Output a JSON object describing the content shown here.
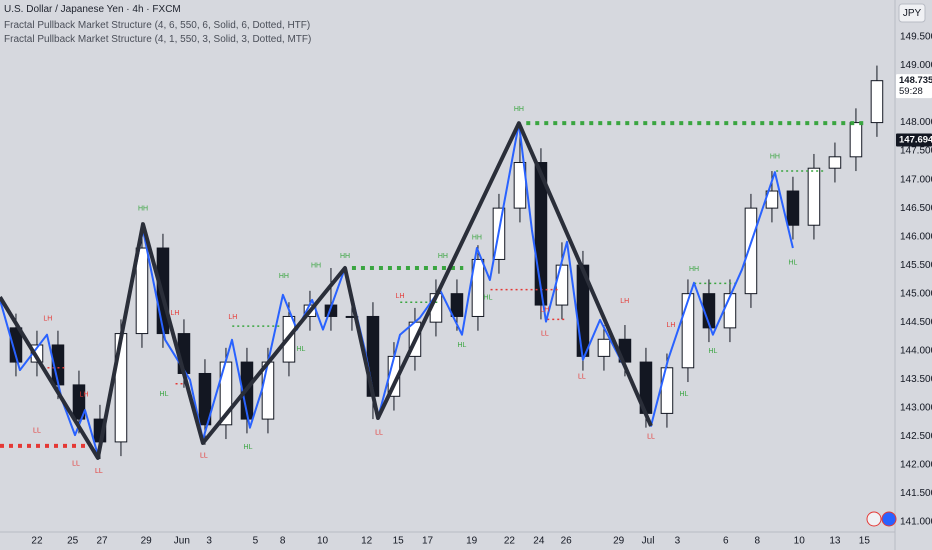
{
  "chart_data": {
    "type": "candlestick",
    "title": "U.S. Dollar / Japanese Yen · 4h · FXCM",
    "indicators": [
      "Fractal Pullback Market Structure (4, 6, 550, 6, Solid, 6, Dotted, HTF)",
      "Fractal Pullback Market Structure (4, 1, 550, 3, Solid, 3, Dotted, MTF)"
    ],
    "currency": "JPY",
    "grid": false,
    "xlim": [
      -1.76,
      40.86
    ],
    "ylim": [
      140.82,
      150.15
    ],
    "xticks": [
      {
        "value": 0,
        "label": "22"
      },
      {
        "value": 1.7,
        "label": "25"
      },
      {
        "value": 3.1,
        "label": "27"
      },
      {
        "value": 5.2,
        "label": "29"
      },
      {
        "value": 6.9,
        "label": "Jun"
      },
      {
        "value": 8.2,
        "label": "3"
      },
      {
        "value": 10.4,
        "label": "5"
      },
      {
        "value": 11.7,
        "label": "8"
      },
      {
        "value": 13.6,
        "label": "10"
      },
      {
        "value": 15.7,
        "label": "12"
      },
      {
        "value": 17.2,
        "label": "15"
      },
      {
        "value": 18.6,
        "label": "17"
      },
      {
        "value": 20.7,
        "label": "19"
      },
      {
        "value": 22.5,
        "label": "22"
      },
      {
        "value": 23.9,
        "label": "24"
      },
      {
        "value": 25.2,
        "label": "26"
      },
      {
        "value": 27.7,
        "label": "29"
      },
      {
        "value": 29.1,
        "label": "Jul"
      },
      {
        "value": 30.5,
        "label": "3"
      },
      {
        "value": 32.8,
        "label": "6"
      },
      {
        "value": 34.3,
        "label": "8"
      },
      {
        "value": 36.3,
        "label": "10"
      },
      {
        "value": 38.0,
        "label": "13"
      },
      {
        "value": 39.4,
        "label": "15"
      }
    ],
    "yticks": [
      {
        "value": 149.5,
        "label": "149.500"
      },
      {
        "value": 149,
        "label": "149.000"
      },
      {
        "value": 148,
        "label": "148.000"
      },
      {
        "value": 147.5,
        "label": "147.500"
      },
      {
        "value": 147,
        "label": "147.000"
      },
      {
        "value": 146.5,
        "label": "146.500"
      },
      {
        "value": 146,
        "label": "146.000"
      },
      {
        "value": 145.5,
        "label": "145.500"
      },
      {
        "value": 145,
        "label": "145.000"
      },
      {
        "value": 144.5,
        "label": "144.500"
      },
      {
        "value": 144,
        "label": "144.000"
      },
      {
        "value": 143.5,
        "label": "143.500"
      },
      {
        "value": 143,
        "label": "143.000"
      },
      {
        "value": 142.5,
        "label": "142.500"
      },
      {
        "value": 142,
        "label": "142.000"
      },
      {
        "value": 141.5,
        "label": "141.500"
      },
      {
        "value": 141,
        "label": "141.000"
      }
    ],
    "candles": {
      "up_color": "#ffffff",
      "down_color": "#131722",
      "x": [
        -1,
        0,
        1,
        2,
        3,
        4,
        5,
        6,
        7,
        8,
        9,
        10,
        11,
        12,
        13,
        14,
        15,
        16,
        17,
        18,
        19,
        20,
        21,
        22,
        23,
        24,
        25,
        26,
        27,
        28,
        29,
        30,
        31,
        32,
        33,
        34,
        35,
        36,
        37,
        38,
        39,
        40
      ],
      "open": [
        144.4,
        143.8,
        144.1,
        143.4,
        142.8,
        142.4,
        144.3,
        145.8,
        144.3,
        143.6,
        142.7,
        143.8,
        142.8,
        143.8,
        144.6,
        144.8,
        144.6,
        144.6,
        143.2,
        143.9,
        144.5,
        145.0,
        144.6,
        145.6,
        146.5,
        147.3,
        144.8,
        145.5,
        143.9,
        144.2,
        143.8,
        142.9,
        143.7,
        145.0,
        144.4,
        145.0,
        146.5,
        146.8,
        146.2,
        147.2,
        147.4,
        148.0
      ],
      "high": [
        144.65,
        144.35,
        144.35,
        143.65,
        143.05,
        144.55,
        146.25,
        146.05,
        144.55,
        143.85,
        144.05,
        144.05,
        144.05,
        144.85,
        145.05,
        145.45,
        144.85,
        144.85,
        144.15,
        144.75,
        145.25,
        145.25,
        145.85,
        146.75,
        148.0,
        147.55,
        145.9,
        145.75,
        144.45,
        144.45,
        144.05,
        143.95,
        145.25,
        145.25,
        145.25,
        146.75,
        147.15,
        147.05,
        147.45,
        147.65,
        148.25,
        149.0
      ],
      "low": [
        143.55,
        143.55,
        143.15,
        142.55,
        142.1,
        142.15,
        144.05,
        144.05,
        143.35,
        142.35,
        142.45,
        142.55,
        142.55,
        143.55,
        144.35,
        144.35,
        144.35,
        142.8,
        142.95,
        143.65,
        144.25,
        144.35,
        144.35,
        145.35,
        146.25,
        144.55,
        144.55,
        143.65,
        143.65,
        143.55,
        142.65,
        142.65,
        143.45,
        144.15,
        144.15,
        144.75,
        146.25,
        145.95,
        145.95,
        146.95,
        147.15,
        147.75
      ],
      "close": [
        143.8,
        144.1,
        143.4,
        142.8,
        142.4,
        144.3,
        145.8,
        144.3,
        143.6,
        142.7,
        143.8,
        142.8,
        143.8,
        144.6,
        144.8,
        144.6,
        144.6,
        143.2,
        143.9,
        144.5,
        145.0,
        144.6,
        145.6,
        146.5,
        147.3,
        144.8,
        145.5,
        143.9,
        144.2,
        143.8,
        142.9,
        143.7,
        145.0,
        144.4,
        145.0,
        146.5,
        146.8,
        146.2,
        147.2,
        147.4,
        148.0,
        148.735
      ]
    },
    "series": [
      {
        "color": "#2962ff",
        "width": 2,
        "x": [
          -1.76,
          -0.81,
          0.48,
          1.19,
          1.81,
          2.29,
          2.9,
          5.05,
          6.1,
          7.29,
          7.9,
          9.29,
          10.14,
          10.71,
          11.71,
          12.38,
          13.1,
          13.62,
          14.67,
          15.62,
          16.24,
          17.29,
          18.24,
          19.19,
          20.24,
          20.95,
          21.57,
          22.95,
          23.57,
          24.24,
          25.24,
          26.0,
          26.81,
          28.05,
          29.24,
          30.05,
          31.29,
          32.19,
          33.57,
          35.14,
          36.0
        ],
        "values": [
          144.89,
          143.66,
          144.28,
          143.14,
          142.52,
          142.96,
          142.17,
          146.12,
          144.19,
          143.49,
          142.44,
          144.19,
          142.65,
          143.31,
          144.98,
          144.37,
          144.89,
          144.37,
          145.45,
          144.01,
          142.82,
          144.28,
          144.58,
          145.07,
          144.28,
          145.8,
          145.24,
          147.99,
          146.12,
          144.51,
          145.91,
          143.84,
          144.54,
          143.66,
          142.68,
          143.84,
          145.19,
          144.28,
          145.42,
          147.13,
          145.8
        ]
      },
      {
        "color": "#2a2e39",
        "width": 4,
        "x": [
          -1.76,
          2.9,
          5.05,
          7.9,
          14.67,
          16.24,
          22.95,
          29.24
        ],
        "values": [
          144.94,
          142.12,
          146.22,
          142.38,
          145.45,
          142.82,
          147.99,
          142.68
        ]
      }
    ],
    "levels": [
      {
        "y": 147.99,
        "x": [
          23.3,
          39.4
        ],
        "color": "#3aa540",
        "width": 4
      },
      {
        "y": 145.45,
        "x": [
          15.0,
          20.3
        ],
        "color": "#3aa540",
        "width": 4
      },
      {
        "y": 142.33,
        "x": [
          -1.76,
          2.6
        ],
        "color": "#e53935",
        "width": 4
      },
      {
        "y": 147.15,
        "x": [
          35.2,
          37.5
        ],
        "color": "#3aa540",
        "width": 1.5
      },
      {
        "y": 145.18,
        "x": [
          31.3,
          33.3
        ],
        "color": "#3aa540",
        "width": 1.5
      },
      {
        "y": 144.43,
        "x": [
          9.3,
          11.6
        ],
        "color": "#3aa540",
        "width": 1.5
      },
      {
        "y": 144.85,
        "x": [
          17.3,
          19.2
        ],
        "color": "#3aa540",
        "width": 1.5
      },
      {
        "y": 145.07,
        "x": [
          21.6,
          24.9
        ],
        "color": "#e53935",
        "width": 1.5
      },
      {
        "y": 143.7,
        "x": [
          0.5,
          1.3
        ],
        "color": "#e53935",
        "width": 1.5
      },
      {
        "y": 143.42,
        "x": [
          6.6,
          7.3
        ],
        "color": "#e53935",
        "width": 1.5
      },
      {
        "y": 144.55,
        "x": [
          24.3,
          25.2
        ],
        "color": "#e53935",
        "width": 1.5
      }
    ],
    "structure_labels": [
      {
        "text": "HH",
        "x": 5.05,
        "y": 146.49,
        "color": "#3aa540"
      },
      {
        "text": "HH",
        "x": 22.95,
        "y": 148.24,
        "color": "#3aa540"
      },
      {
        "text": "HH",
        "x": 14.67,
        "y": 145.66,
        "color": "#3aa540"
      },
      {
        "text": "HH",
        "x": 13.29,
        "y": 145.49,
        "color": "#3aa540"
      },
      {
        "text": "HH",
        "x": 11.76,
        "y": 145.31,
        "color": "#3aa540"
      },
      {
        "text": "HH",
        "x": 19.33,
        "y": 145.66,
        "color": "#3aa540"
      },
      {
        "text": "HH",
        "x": 20.95,
        "y": 145.98,
        "color": "#3aa540"
      },
      {
        "text": "HH",
        "x": 31.29,
        "y": 145.43,
        "color": "#3aa540"
      },
      {
        "text": "HH",
        "x": 35.14,
        "y": 147.4,
        "color": "#3aa540"
      },
      {
        "text": "LH",
        "x": 0.52,
        "y": 144.56,
        "color": "#e53935"
      },
      {
        "text": "LH",
        "x": 6.57,
        "y": 144.66,
        "color": "#e53935"
      },
      {
        "text": "LH",
        "x": 9.33,
        "y": 144.59,
        "color": "#e53935"
      },
      {
        "text": "LH",
        "x": 2.24,
        "y": 143.23,
        "color": "#e53935"
      },
      {
        "text": "LH",
        "x": 17.29,
        "y": 144.96,
        "color": "#e53935"
      },
      {
        "text": "LH",
        "x": 24.19,
        "y": 144.72,
        "color": "#e53935"
      },
      {
        "text": "LH",
        "x": 27.99,
        "y": 144.87,
        "color": "#e53935"
      },
      {
        "text": "LH",
        "x": 30.19,
        "y": 144.45,
        "color": "#e53935"
      },
      {
        "text": "LL",
        "x": 0,
        "y": 142.6,
        "color": "#e53935"
      },
      {
        "text": "LL",
        "x": 1.86,
        "y": 142.02,
        "color": "#e53935"
      },
      {
        "text": "LL",
        "x": 2.95,
        "y": 141.89,
        "color": "#e53935"
      },
      {
        "text": "LL",
        "x": 7.95,
        "y": 142.16,
        "color": "#e53935"
      },
      {
        "text": "LL",
        "x": 16.29,
        "y": 142.56,
        "color": "#e53935"
      },
      {
        "text": "LL",
        "x": 24.19,
        "y": 144.3,
        "color": "#e53935"
      },
      {
        "text": "LL",
        "x": 25.95,
        "y": 143.54,
        "color": "#e53935"
      },
      {
        "text": "LL",
        "x": 29.24,
        "y": 142.49,
        "color": "#e53935"
      },
      {
        "text": "HL",
        "x": 6.05,
        "y": 143.24,
        "color": "#3aa540"
      },
      {
        "text": "HL",
        "x": 10.05,
        "y": 142.31,
        "color": "#3aa540"
      },
      {
        "text": "HL",
        "x": 12.57,
        "y": 144.03,
        "color": "#3aa540"
      },
      {
        "text": "HL",
        "x": 20.24,
        "y": 144.1,
        "color": "#3aa540"
      },
      {
        "text": "HL",
        "x": 21.48,
        "y": 144.93,
        "color": "#3aa540"
      },
      {
        "text": "HL",
        "x": 30.81,
        "y": 143.24,
        "color": "#3aa540"
      },
      {
        "text": "HL",
        "x": 32.19,
        "y": 143.99,
        "color": "#3aa540"
      },
      {
        "text": "HL",
        "x": 36.0,
        "y": 145.54,
        "color": "#3aa540"
      }
    ],
    "price_labels": [
      {
        "value": 148.735,
        "label": "148.735",
        "sub": "59:28",
        "bg": "#ffffff",
        "fg": "#131722"
      },
      {
        "value": 147.694,
        "label": "147.694",
        "bg": "#131722",
        "fg": "#ffffff"
      }
    ]
  }
}
